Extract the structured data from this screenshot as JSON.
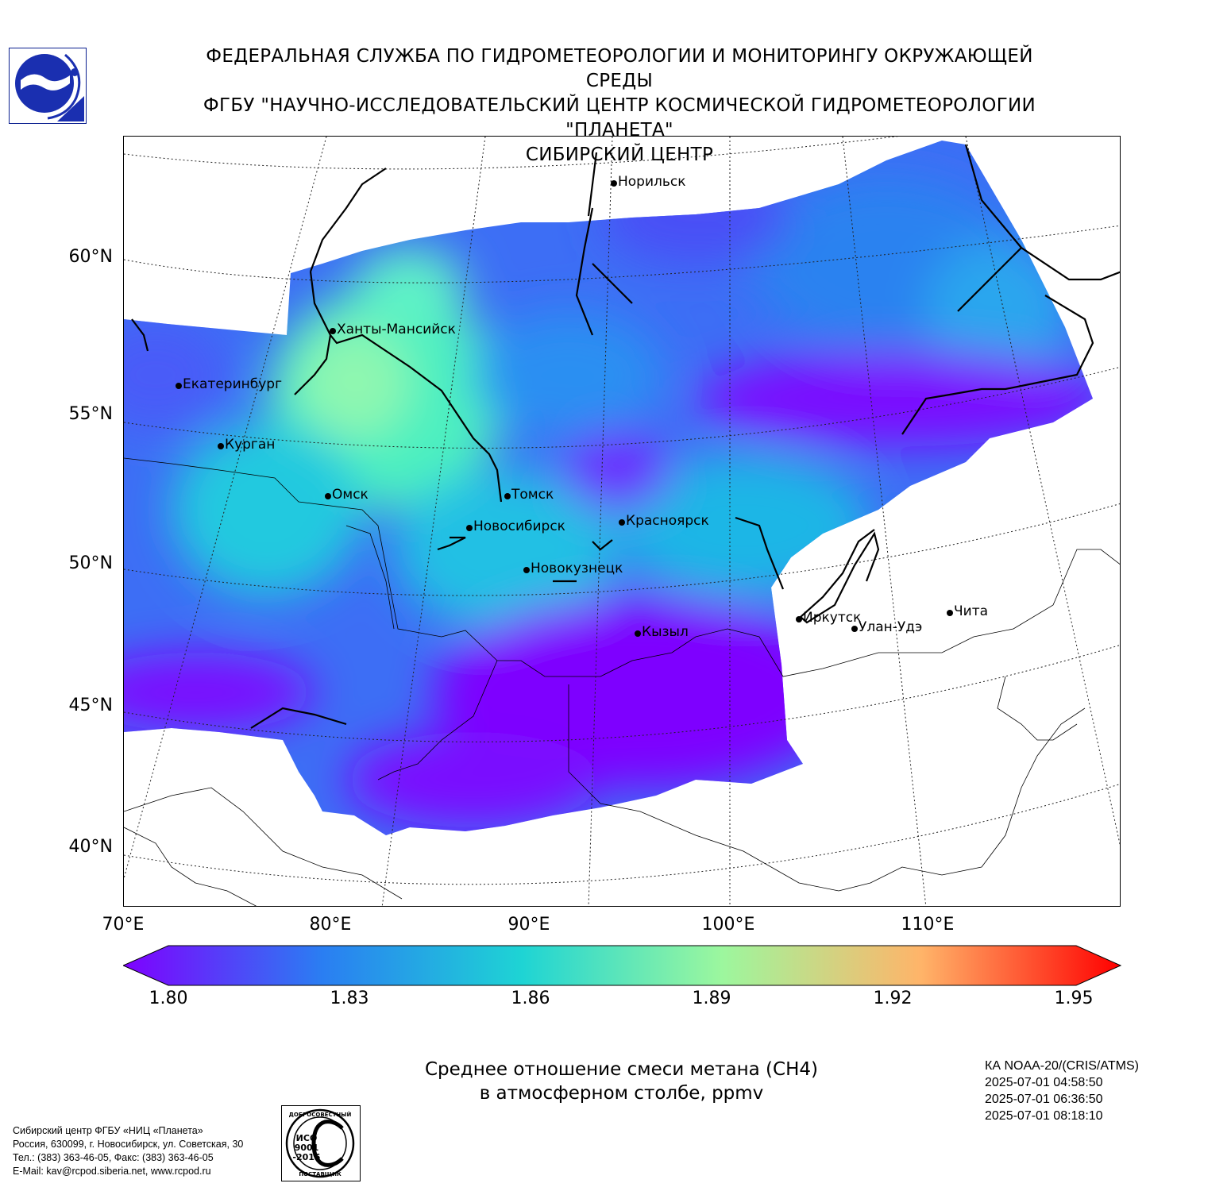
{
  "header": {
    "line1": "ФЕДЕРАЛЬНАЯ СЛУЖБА ПО ГИДРОМЕТЕОРОЛОГИИ И МОНИТОРИНГУ ОКРУЖАЮЩЕЙ СРЕДЫ",
    "line2": "ФГБУ \"НАУЧНО-ИССЛЕДОВАТЕЛЬСКИЙ ЦЕНТР КОСМИЧЕСКОЙ ГИДРОМЕТЕОРОЛОГИИ \"ПЛАНЕТА\"",
    "line3": "СИБИРСКИЙ ЦЕНТР"
  },
  "map": {
    "lat_labels": [
      "60°N",
      "55°N",
      "50°N",
      "45°N",
      "40°N"
    ],
    "lon_labels": [
      "70°E",
      "80°E",
      "90°E",
      "100°E",
      "110°E"
    ],
    "cities": [
      {
        "name": "Норильск"
      },
      {
        "name": "Ханты-Мансийск"
      },
      {
        "name": "Екатеринбург"
      },
      {
        "name": "Курган"
      },
      {
        "name": "Омск"
      },
      {
        "name": "Томск"
      },
      {
        "name": "Новосибирск"
      },
      {
        "name": "Красноярск"
      },
      {
        "name": "Новокузнецк"
      },
      {
        "name": "Кызыл"
      },
      {
        "name": "Иркутск"
      },
      {
        "name": "Улан-Удэ"
      },
      {
        "name": "Чита"
      }
    ]
  },
  "colorbar": {
    "min": 1.8,
    "max": 1.95,
    "ticks": [
      "1.80",
      "1.83",
      "1.86",
      "1.89",
      "1.92",
      "1.95"
    ],
    "colors": [
      "#7f00ff",
      "#2a7ef2",
      "#1ed4d4",
      "#9cf79e",
      "#ffb469",
      "#ff0000"
    ]
  },
  "caption": {
    "line1": "Среднее отношение смеси метана (СН4)",
    "line2": "в атмосферном столбе, ppmv"
  },
  "satellite": {
    "name": "КА NOAA-20/(CRIS/ATMS)",
    "times": [
      "2025-07-01 04:58:50",
      "2025-07-01 06:36:50",
      "2025-07-01 08:18:10"
    ]
  },
  "address": {
    "line1": "Сибирский центр ФГБУ «НИЦ «Планета»",
    "line2": "Россия, 630099, г. Новосибирск, ул. Советская, 30",
    "line3": "Тел.: (383) 363-46-05, Факс: (383) 363-46-05",
    "line4": "E-Mail: kav@rcpod.siberia.net, www.rcpod.ru"
  },
  "iso_badge": {
    "top_text": "ДОБРОСОВЕСТНЫЙ",
    "line1": "ИСО",
    "line2": "9001",
    "line3": "-2015",
    "bottom_text": "ПОСТАВЩИК"
  }
}
